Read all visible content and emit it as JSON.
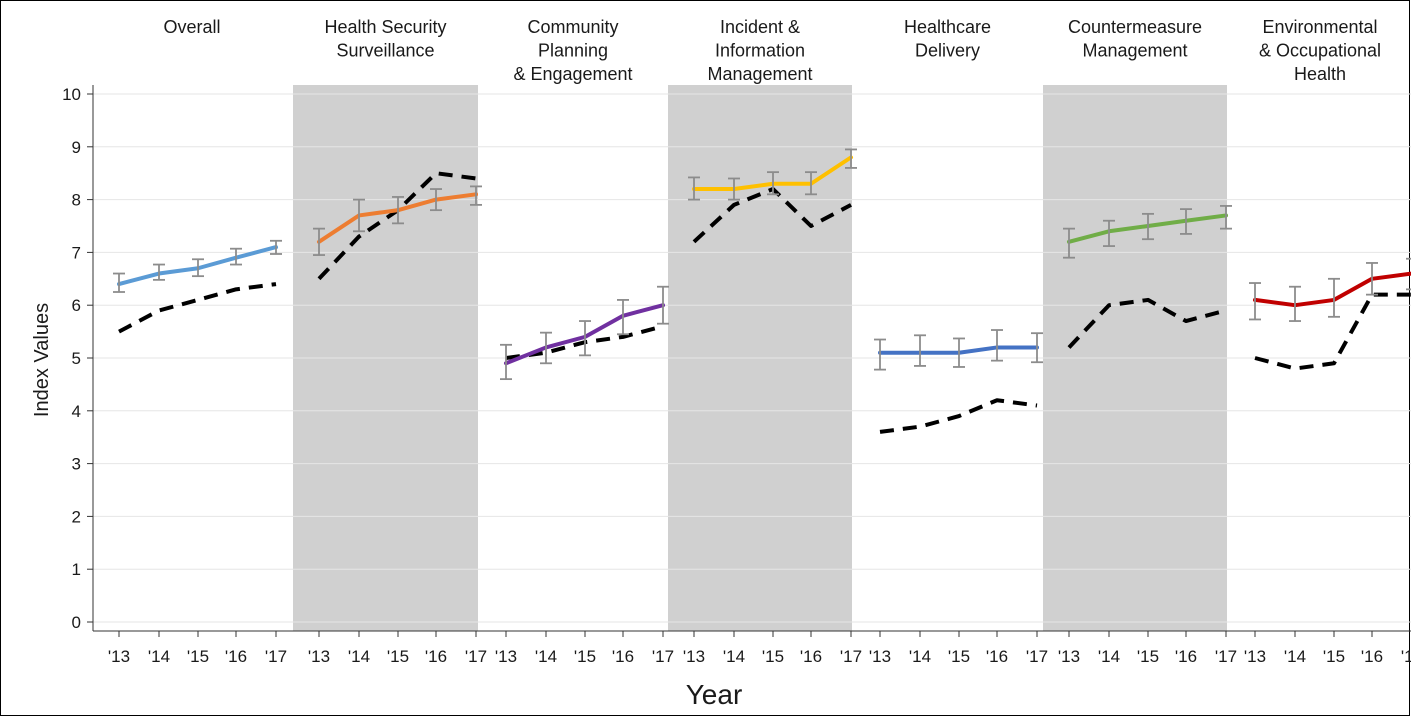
{
  "chart_data": {
    "type": "line",
    "ylabel": "Index Values",
    "xlabel": "Year",
    "ylim": [
      0,
      10
    ],
    "yticks": [
      "0",
      "1",
      "2",
      "3",
      "4",
      "5",
      "6",
      "7",
      "8",
      "9",
      "10"
    ],
    "x_tick_labels": [
      "'13",
      "'14",
      "'15",
      "'16",
      "'17"
    ],
    "grid": true,
    "shaded_panels": [
      1,
      3,
      5
    ],
    "panels": [
      {
        "title": [
          "Overall"
        ],
        "color": "#5b9bd5",
        "index": [
          6.4,
          6.6,
          6.7,
          6.9,
          7.1
        ],
        "error_low": [
          6.25,
          6.48,
          6.55,
          6.77,
          6.97
        ],
        "error_high": [
          6.6,
          6.77,
          6.87,
          7.07,
          7.22
        ],
        "dashed": [
          5.5,
          5.9,
          6.1,
          6.3,
          6.4
        ]
      },
      {
        "title": [
          "Health Security",
          "Surveillance"
        ],
        "color": "#ed7d31",
        "index": [
          7.2,
          7.7,
          7.8,
          8.0,
          8.1
        ],
        "error_low": [
          6.95,
          7.4,
          7.55,
          7.8,
          7.9
        ],
        "error_high": [
          7.45,
          8.0,
          8.05,
          8.2,
          8.25
        ],
        "dashed": [
          6.5,
          7.3,
          7.8,
          8.5,
          8.4
        ]
      },
      {
        "title": [
          "Community",
          "Planning",
          "& Engagement"
        ],
        "color": "#7030a0",
        "index": [
          4.9,
          5.2,
          5.4,
          5.8,
          6.0
        ],
        "error_low": [
          4.6,
          4.9,
          5.05,
          5.45,
          5.65
        ],
        "error_high": [
          5.25,
          5.48,
          5.7,
          6.1,
          6.35
        ],
        "dashed": [
          5.0,
          5.1,
          5.3,
          5.4,
          5.6
        ]
      },
      {
        "title": [
          "Incident &",
          "Information",
          "Management"
        ],
        "color": "#ffc000",
        "index": [
          8.2,
          8.2,
          8.3,
          8.3,
          8.8
        ],
        "error_low": [
          8.0,
          8.0,
          8.1,
          8.1,
          8.6
        ],
        "error_high": [
          8.42,
          8.4,
          8.52,
          8.52,
          8.95
        ],
        "dashed": [
          7.2,
          7.9,
          8.2,
          7.5,
          7.9
        ]
      },
      {
        "title": [
          "Healthcare",
          "Delivery"
        ],
        "color": "#4472c4",
        "index": [
          5.1,
          5.1,
          5.1,
          5.2,
          5.2
        ],
        "error_low": [
          4.78,
          4.85,
          4.83,
          4.95,
          4.92
        ],
        "error_high": [
          5.35,
          5.43,
          5.37,
          5.53,
          5.47
        ],
        "dashed": [
          3.6,
          3.7,
          3.9,
          4.2,
          4.1
        ]
      },
      {
        "title": [
          "Countermeasure",
          "Management"
        ],
        "color": "#70ad47",
        "index": [
          7.2,
          7.4,
          7.5,
          7.6,
          7.7
        ],
        "error_low": [
          6.9,
          7.12,
          7.25,
          7.35,
          7.45
        ],
        "error_high": [
          7.45,
          7.6,
          7.73,
          7.82,
          7.88
        ],
        "dashed": [
          5.2,
          6.0,
          6.1,
          5.7,
          5.9
        ]
      },
      {
        "title": [
          "Environmental",
          "& Occupational",
          "Health"
        ],
        "color": "#c00000",
        "index": [
          6.1,
          6.0,
          6.1,
          6.5,
          6.6
        ],
        "error_low": [
          5.73,
          5.7,
          5.78,
          6.2,
          6.3
        ],
        "error_high": [
          6.42,
          6.35,
          6.5,
          6.8,
          6.88
        ],
        "dashed": [
          5.0,
          4.8,
          4.9,
          6.2,
          6.2
        ]
      }
    ],
    "error_bar_color": "#8c8c8c",
    "dashed_color": "#000000",
    "shade_color": "#d0d0d0",
    "grid_color": "#e6e6e6"
  }
}
